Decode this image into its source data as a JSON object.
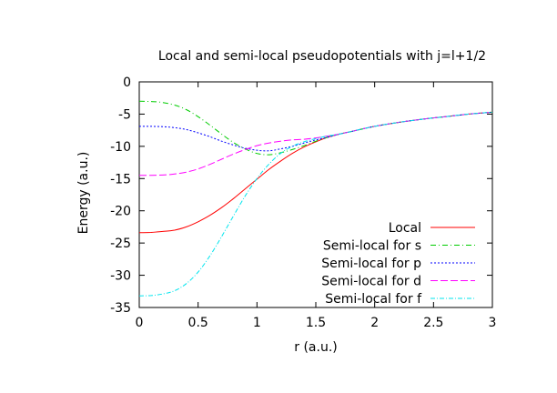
{
  "chart_data": {
    "type": "line",
    "title": "Local and semi-local pseudopotentials with j=l+1/2",
    "xlabel": "r (a.u.)",
    "ylabel": "Energy (a.u.)",
    "xlim": [
      0,
      3
    ],
    "ylim": [
      -35,
      0
    ],
    "xticks": [
      0,
      0.5,
      1,
      1.5,
      2,
      2.5,
      3
    ],
    "xtick_labels": [
      "0",
      "0.5",
      "1",
      "1.5",
      "2",
      "2.5",
      "3"
    ],
    "yticks": [
      0,
      -5,
      -10,
      -15,
      -20,
      -25,
      -30,
      -35
    ],
    "ytick_labels": [
      "0",
      "-5",
      "-10",
      "-15",
      "-20",
      "-25",
      "-30",
      "-35"
    ],
    "grid": false,
    "legend_position": "bottom-right",
    "series": [
      {
        "name": "Local",
        "color": "#ff0000",
        "dash": "solid",
        "x": [
          0,
          0.1,
          0.2,
          0.3,
          0.4,
          0.5,
          0.6,
          0.7,
          0.8,
          0.9,
          1.0,
          1.1,
          1.2,
          1.3,
          1.4,
          1.5,
          1.6,
          1.7,
          1.8,
          2.0,
          2.2,
          2.4,
          2.6,
          2.8,
          3.0
        ],
        "y": [
          -23.4,
          -23.35,
          -23.2,
          -23.0,
          -22.5,
          -21.7,
          -20.7,
          -19.5,
          -18.1,
          -16.6,
          -15.1,
          -13.6,
          -12.3,
          -11.1,
          -10.1,
          -9.3,
          -8.6,
          -8.1,
          -7.7,
          -6.9,
          -6.3,
          -5.8,
          -5.4,
          -5.0,
          -4.7
        ]
      },
      {
        "name": "Semi-local for s",
        "color": "#00cc00",
        "dash": "dashdot",
        "x": [
          0,
          0.1,
          0.2,
          0.3,
          0.4,
          0.5,
          0.6,
          0.7,
          0.8,
          0.9,
          1.0,
          1.1,
          1.2,
          1.3,
          1.4,
          1.5,
          1.6,
          1.7,
          1.8,
          2.0,
          2.2,
          2.4,
          2.6,
          2.8,
          3.0
        ],
        "y": [
          -3.0,
          -3.05,
          -3.2,
          -3.6,
          -4.3,
          -5.4,
          -6.7,
          -8.1,
          -9.4,
          -10.4,
          -11.1,
          -11.3,
          -11.0,
          -10.5,
          -9.9,
          -9.2,
          -8.6,
          -8.1,
          -7.7,
          -6.9,
          -6.3,
          -5.8,
          -5.4,
          -5.0,
          -4.7
        ]
      },
      {
        "name": "Semi-local for p",
        "color": "#0000ff",
        "dash": "dotted",
        "x": [
          0,
          0.1,
          0.2,
          0.3,
          0.4,
          0.5,
          0.6,
          0.7,
          0.8,
          0.9,
          1.0,
          1.1,
          1.2,
          1.3,
          1.4,
          1.5,
          1.6,
          1.7,
          1.8,
          2.0,
          2.2,
          2.4,
          2.6,
          2.8,
          3.0
        ],
        "y": [
          -6.9,
          -6.9,
          -6.95,
          -7.1,
          -7.4,
          -7.9,
          -8.5,
          -9.2,
          -9.8,
          -10.3,
          -10.6,
          -10.7,
          -10.4,
          -10.0,
          -9.5,
          -9.0,
          -8.6,
          -8.1,
          -7.7,
          -6.9,
          -6.3,
          -5.8,
          -5.4,
          -5.0,
          -4.7
        ]
      },
      {
        "name": "Semi-local for d",
        "color": "#ff00ff",
        "dash": "longdash",
        "x": [
          0,
          0.1,
          0.2,
          0.3,
          0.4,
          0.5,
          0.6,
          0.7,
          0.8,
          0.9,
          1.0,
          1.1,
          1.2,
          1.3,
          1.4,
          1.5,
          1.6,
          1.7,
          1.8,
          2.0,
          2.2,
          2.4,
          2.6,
          2.8,
          3.0
        ],
        "y": [
          -14.5,
          -14.5,
          -14.45,
          -14.3,
          -14.0,
          -13.5,
          -12.8,
          -12.0,
          -11.2,
          -10.5,
          -9.9,
          -9.5,
          -9.2,
          -9.0,
          -8.9,
          -8.7,
          -8.4,
          -8.1,
          -7.7,
          -6.9,
          -6.3,
          -5.8,
          -5.4,
          -5.0,
          -4.7
        ]
      },
      {
        "name": "Semi-local for f",
        "color": "#00e5ee",
        "dash": "dashdot2",
        "x": [
          0,
          0.1,
          0.2,
          0.3,
          0.4,
          0.5,
          0.6,
          0.7,
          0.8,
          0.9,
          1.0,
          1.1,
          1.2,
          1.3,
          1.4,
          1.5,
          1.6,
          1.7,
          1.8,
          2.0,
          2.2,
          2.4,
          2.6,
          2.8,
          3.0
        ],
        "y": [
          -33.2,
          -33.15,
          -32.9,
          -32.4,
          -31.3,
          -29.5,
          -27.0,
          -24.0,
          -20.8,
          -17.7,
          -15.0,
          -12.8,
          -11.1,
          -10.0,
          -9.3,
          -8.8,
          -8.4,
          -8.1,
          -7.7,
          -6.9,
          -6.3,
          -5.8,
          -5.4,
          -5.0,
          -4.7
        ]
      }
    ]
  }
}
